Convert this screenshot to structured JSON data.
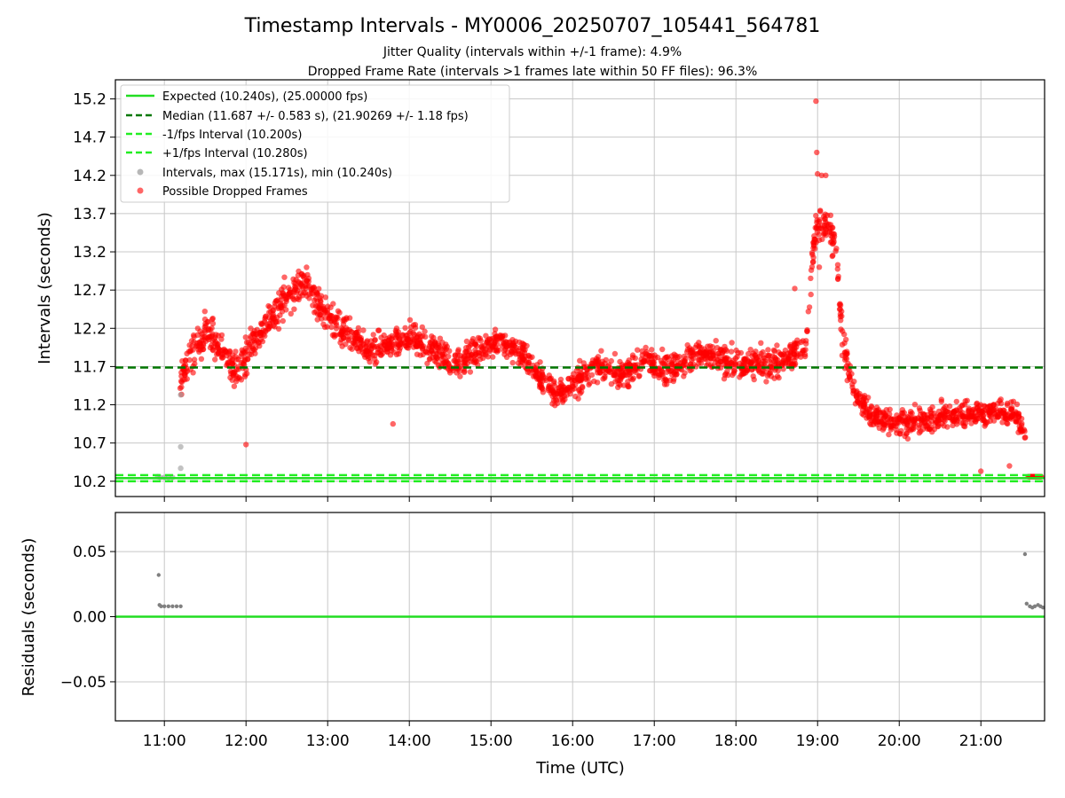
{
  "colors": {
    "expected": "#22dd22",
    "median": "#007700",
    "fps_bounds": "#22ee22",
    "intervals": "#999999",
    "dropped": "#ff0000",
    "residuals": "#808080",
    "grid": "#c8c8c8"
  },
  "chart_data": [
    {
      "type": "scatter",
      "title": "Timestamp Intervals - MY0006_20250707_105441_564781",
      "subtitle_lines": [
        "Jitter Quality (intervals within +/-1 frame): 4.9%",
        "Dropped Frame Rate (intervals >1 frames late within 50 FF files): 96.3%"
      ],
      "xlabel": "",
      "ylabel": "Intervals (seconds)",
      "x_unit": "hours UTC",
      "xlim": [
        10.4,
        21.78
      ],
      "ylim": [
        10.0,
        15.45
      ],
      "yticks": [
        10.2,
        10.7,
        11.2,
        11.7,
        12.2,
        12.7,
        13.2,
        13.7,
        14.2,
        14.7,
        15.2
      ],
      "ytick_labels": [
        "10.2",
        "10.7",
        "11.2",
        "11.7",
        "12.2",
        "12.7",
        "13.2",
        "13.7",
        "14.2",
        "14.7",
        "15.2"
      ],
      "xticks": [
        11,
        12,
        13,
        14,
        15,
        16,
        17,
        18,
        19,
        20,
        21
      ],
      "grid": true,
      "legend_position": "top-left",
      "reference_lines": [
        {
          "name": "Expected (10.240s), (25.00000 fps)",
          "y": 10.24,
          "style": "solid",
          "color_key": "expected"
        },
        {
          "name": "Median (11.687 +/- 0.583 s), (21.90269 +/- 1.18 fps)",
          "y": 11.687,
          "style": "dashed",
          "color_key": "median"
        },
        {
          "name": "-1/fps Interval (10.200s)",
          "y": 10.2,
          "style": "dashed",
          "color_key": "fps_bounds"
        },
        {
          "name": "+1/fps Interval (10.280s)",
          "y": 10.28,
          "style": "dashed",
          "color_key": "fps_bounds"
        }
      ],
      "series": [
        {
          "name": "Intervals, max (15.171s), min (10.240s)",
          "color_key": "intervals",
          "points": [
            [
              10.92,
              10.26
            ],
            [
              10.95,
              10.25
            ],
            [
              11.0,
              10.25
            ],
            [
              11.05,
              10.25
            ],
            [
              11.1,
              10.25
            ],
            [
              11.2,
              10.37
            ],
            [
              11.2,
              10.65
            ],
            [
              11.2,
              11.33
            ]
          ]
        },
        {
          "name": "Possible Dropped Frames",
          "color_key": "dropped",
          "segments": [
            [
              11.18,
              11.4,
              0.35
            ],
            [
              11.3,
              11.8,
              0.4
            ],
            [
              11.5,
              12.15,
              0.42
            ],
            [
              11.7,
              11.95,
              0.38
            ],
            [
              11.85,
              11.65,
              0.35
            ],
            [
              12.0,
              11.85,
              0.4
            ],
            [
              12.2,
              12.2,
              0.4
            ],
            [
              12.4,
              12.45,
              0.42
            ],
            [
              12.6,
              12.75,
              0.38
            ],
            [
              12.75,
              12.8,
              0.38
            ],
            [
              12.95,
              12.4,
              0.38
            ],
            [
              13.2,
              12.15,
              0.35
            ],
            [
              13.5,
              11.9,
              0.32
            ],
            [
              13.8,
              12.0,
              0.32
            ],
            [
              14.0,
              12.1,
              0.3
            ],
            [
              14.3,
              11.9,
              0.32
            ],
            [
              14.6,
              11.75,
              0.32
            ],
            [
              14.9,
              11.95,
              0.32
            ],
            [
              15.1,
              12.05,
              0.32
            ],
            [
              15.4,
              11.85,
              0.32
            ],
            [
              15.6,
              11.55,
              0.32
            ],
            [
              15.8,
              11.35,
              0.3
            ],
            [
              16.0,
              11.45,
              0.3
            ],
            [
              16.3,
              11.7,
              0.3
            ],
            [
              16.6,
              11.6,
              0.3
            ],
            [
              16.9,
              11.8,
              0.32
            ],
            [
              17.2,
              11.65,
              0.32
            ],
            [
              17.5,
              11.85,
              0.34
            ],
            [
              17.8,
              11.8,
              0.32
            ],
            [
              18.1,
              11.7,
              0.32
            ],
            [
              18.4,
              11.75,
              0.34
            ],
            [
              18.6,
              11.8,
              0.35
            ],
            [
              18.85,
              11.9,
              0.3
            ],
            [
              18.97,
              13.5,
              0.45
            ],
            [
              19.1,
              13.6,
              0.35
            ],
            [
              19.22,
              13.3,
              0.35
            ],
            [
              19.3,
              12.1,
              0.45
            ],
            [
              19.45,
              11.3,
              0.28
            ],
            [
              19.7,
              11.05,
              0.28
            ],
            [
              20.0,
              10.95,
              0.28
            ],
            [
              20.3,
              11.0,
              0.28
            ],
            [
              20.6,
              11.05,
              0.28
            ],
            [
              20.9,
              11.1,
              0.28
            ],
            [
              21.2,
              11.1,
              0.28
            ],
            [
              21.45,
              11.05,
              0.28
            ],
            [
              21.55,
              10.75,
              0.25
            ]
          ],
          "outliers": [
            [
              18.98,
              15.17
            ],
            [
              18.99,
              14.5
            ],
            [
              19.0,
              14.22
            ],
            [
              19.05,
              14.2
            ],
            [
              19.1,
              14.2
            ],
            [
              18.72,
              12.72
            ],
            [
              12.0,
              10.68
            ],
            [
              13.8,
              10.95
            ],
            [
              19.02,
              13.0
            ],
            [
              21.35,
              10.4
            ],
            [
              21.0,
              10.33
            ]
          ],
          "tail": {
            "x_from": 21.58,
            "x_to": 21.74,
            "y": 10.26
          }
        }
      ]
    },
    {
      "type": "scatter",
      "title": "",
      "xlabel": "Time (UTC)",
      "ylabel": "Residuals (seconds)",
      "x_unit": "hours UTC",
      "xlim": [
        10.4,
        21.78
      ],
      "ylim": [
        -0.08,
        0.08
      ],
      "yticks": [
        -0.05,
        0.0,
        0.05
      ],
      "ytick_labels": [
        "−0.05",
        "0.00",
        "0.05"
      ],
      "xticks": [
        11,
        12,
        13,
        14,
        15,
        16,
        17,
        18,
        19,
        20,
        21
      ],
      "xtick_labels": [
        "11:00",
        "12:00",
        "13:00",
        "14:00",
        "15:00",
        "16:00",
        "17:00",
        "18:00",
        "19:00",
        "20:00",
        "21:00"
      ],
      "grid": true,
      "zero_line": {
        "y": 0.0,
        "color_key": "expected"
      },
      "series": [
        {
          "name": "Residuals",
          "color_key": "residuals",
          "points": [
            [
              10.93,
              0.032
            ],
            [
              10.94,
              0.009
            ],
            [
              10.96,
              0.008
            ],
            [
              11.0,
              0.008
            ],
            [
              11.05,
              0.008
            ],
            [
              11.1,
              0.008
            ],
            [
              11.15,
              0.008
            ],
            [
              11.2,
              0.008
            ],
            [
              21.54,
              0.048
            ],
            [
              21.56,
              0.01
            ],
            [
              21.6,
              0.008
            ],
            [
              21.63,
              0.007
            ],
            [
              21.66,
              0.008
            ],
            [
              21.7,
              0.009
            ],
            [
              21.73,
              0.008
            ],
            [
              21.76,
              0.007
            ]
          ]
        }
      ]
    }
  ]
}
